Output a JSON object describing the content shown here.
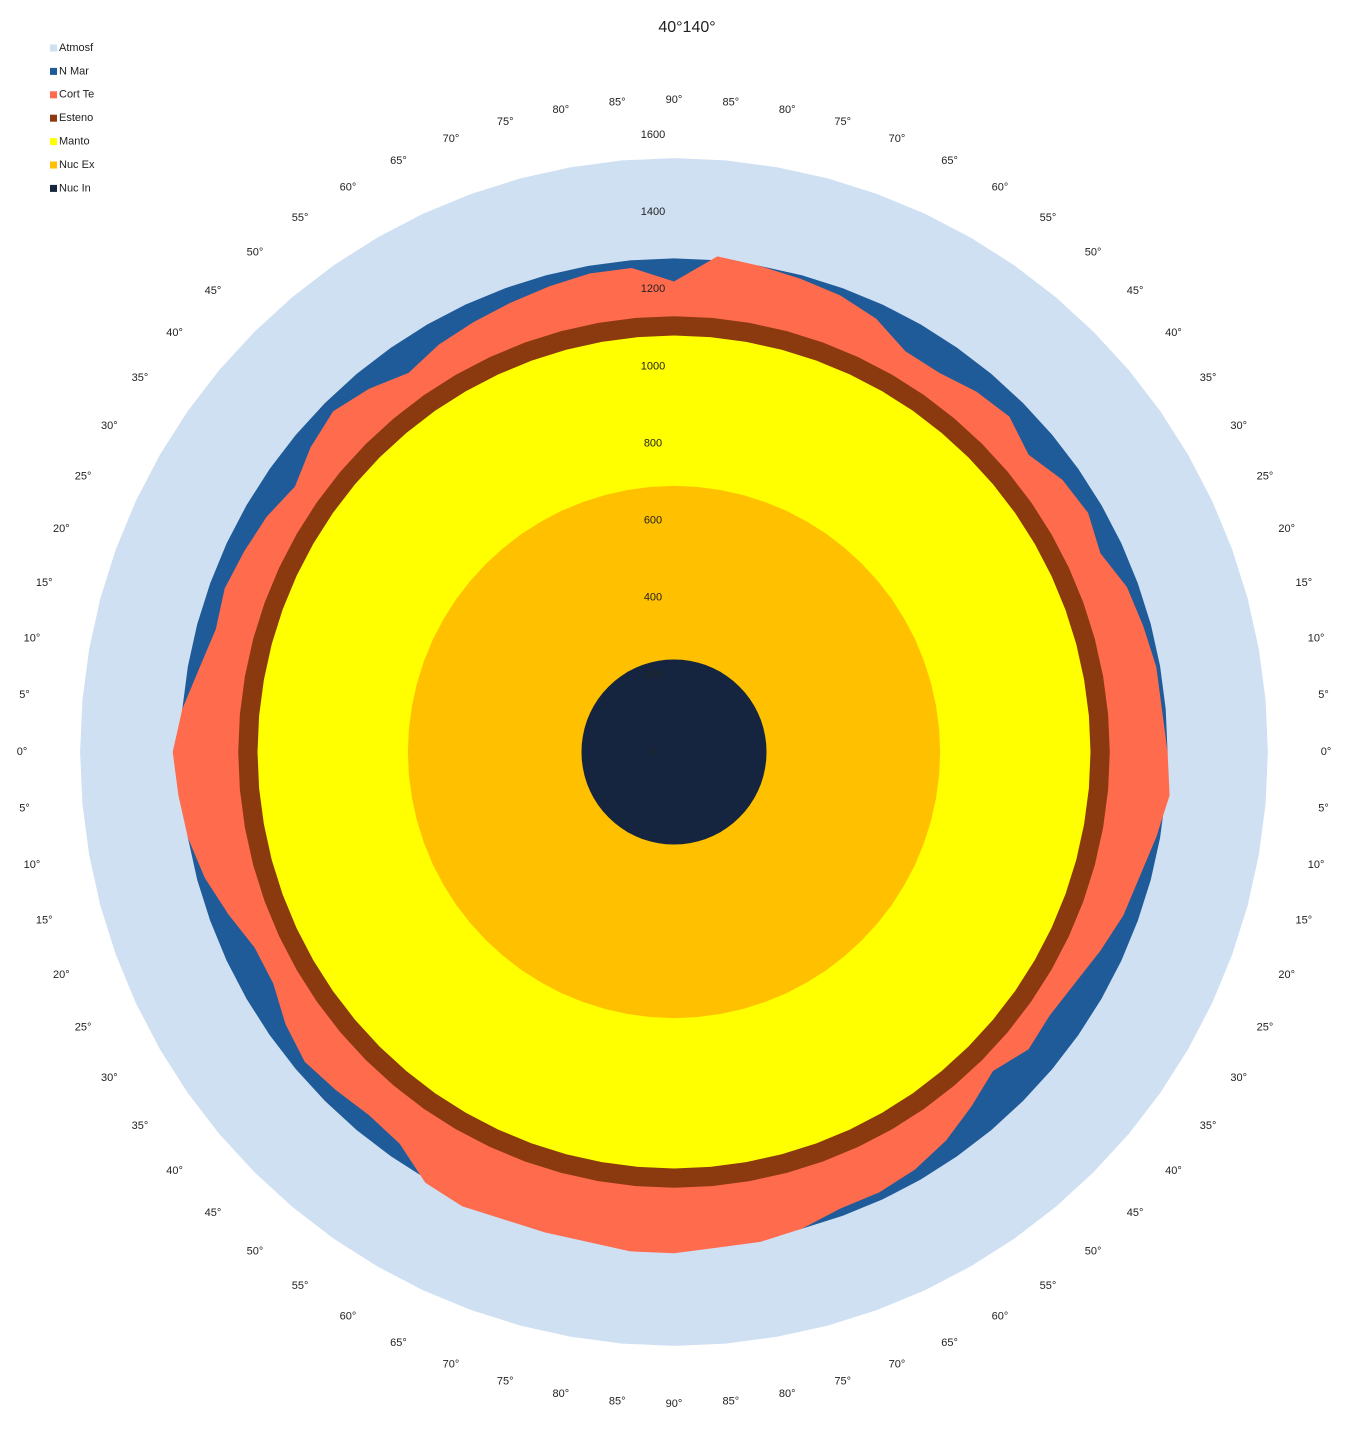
{
  "chart_data": {
    "type": "radar",
    "title": "40°140°",
    "categories": [
      "90°",
      "85°",
      "80°",
      "75°",
      "70°",
      "65°",
      "60°",
      "55°",
      "50°",
      "45°",
      "40°",
      "35°",
      "30°",
      "25°",
      "20°",
      "15°",
      "10°",
      "5°",
      "0°",
      "5°",
      "10°",
      "15°",
      "20°",
      "25°",
      "30°",
      "35°",
      "40°",
      "45°",
      "50°",
      "55°",
      "60°",
      "65°",
      "70°",
      "75°",
      "80°",
      "85°",
      "90°",
      "85°",
      "80°",
      "75°",
      "70°",
      "65°",
      "60°",
      "55°",
      "50°",
      "45°",
      "40°",
      "35°",
      "30°",
      "25°",
      "20°",
      "15°",
      "10°",
      "5°",
      "0°",
      "5°",
      "10°",
      "15°",
      "20°",
      "25°",
      "30°",
      "35°",
      "40°",
      "45°",
      "50°",
      "55°",
      "60°",
      "65°",
      "70°",
      "75°",
      "80°",
      "85°"
    ],
    "ylim": [
      0,
      1600
    ],
    "yticks": [
      0,
      200,
      400,
      600,
      800,
      1000,
      1200,
      1400,
      1600
    ],
    "series": [
      {
        "name": "Atmosf",
        "color": "#cfe0f3",
        "values": [
          1540,
          1540,
          1540,
          1540,
          1540,
          1540,
          1540,
          1540,
          1540,
          1540,
          1540,
          1540,
          1540,
          1540,
          1540,
          1540,
          1540,
          1540,
          1540,
          1540,
          1540,
          1540,
          1540,
          1540,
          1540,
          1540,
          1540,
          1540,
          1540,
          1540,
          1540,
          1540,
          1540,
          1540,
          1540,
          1540,
          1540,
          1540,
          1540,
          1540,
          1540,
          1540,
          1540,
          1540,
          1540,
          1540,
          1540,
          1540,
          1540,
          1540,
          1540,
          1540,
          1540,
          1540,
          1540,
          1540,
          1540,
          1540,
          1540,
          1540,
          1540,
          1540,
          1540,
          1540,
          1540,
          1540,
          1540,
          1540,
          1540,
          1540,
          1540,
          1540
        ]
      },
      {
        "name": "N Mar",
        "color": "#1f5b99",
        "values": [
          1280,
          1280,
          1280,
          1280,
          1280,
          1280,
          1280,
          1280,
          1280,
          1280,
          1280,
          1280,
          1280,
          1280,
          1280,
          1280,
          1280,
          1280,
          1280,
          1280,
          1280,
          1280,
          1280,
          1280,
          1280,
          1280,
          1280,
          1280,
          1280,
          1280,
          1280,
          1280,
          1280,
          1280,
          1280,
          1280,
          1280,
          1280,
          1280,
          1280,
          1280,
          1280,
          1280,
          1280,
          1280,
          1280,
          1280,
          1280,
          1280,
          1280,
          1280,
          1280,
          1280,
          1280,
          1280,
          1280,
          1280,
          1280,
          1280,
          1280,
          1280,
          1280,
          1280,
          1280,
          1280,
          1280,
          1280,
          1280,
          1280,
          1280,
          1280,
          1280
        ]
      },
      {
        "name": "Cort Te",
        "color": "#ff6b4d",
        "values": [
          1220,
          1290,
          1280,
          1270,
          1260,
          1240,
          1200,
          1200,
          1220,
          1230,
          1200,
          1230,
          1240,
          1220,
          1250,
          1260,
          1270,
          1270,
          1280,
          1290,
          1270,
          1250,
          1240,
          1220,
          1200,
          1190,
          1200,
          1170,
          1200,
          1230,
          1250,
          1260,
          1260,
          1280,
          1290,
          1290,
          1300,
          1300,
          1290,
          1290,
          1290,
          1300,
          1290,
          1240,
          1230,
          1240,
          1250,
          1230,
          1200,
          1200,
          1230,
          1260,
          1280,
          1290,
          1300,
          1280,
          1250,
          1230,
          1240,
          1230,
          1220,
          1200,
          1230,
          1250,
          1230,
          1200,
          1220,
          1230,
          1240,
          1250,
          1260,
          1260
        ]
      },
      {
        "name": "Esteno",
        "color": "#8b3a0f",
        "values": [
          1130,
          1130,
          1130,
          1130,
          1130,
          1130,
          1130,
          1130,
          1130,
          1130,
          1130,
          1130,
          1130,
          1130,
          1130,
          1130,
          1130,
          1130,
          1130,
          1130,
          1130,
          1130,
          1130,
          1130,
          1130,
          1130,
          1130,
          1130,
          1130,
          1130,
          1130,
          1130,
          1130,
          1130,
          1130,
          1130,
          1130,
          1130,
          1130,
          1130,
          1130,
          1130,
          1130,
          1130,
          1130,
          1130,
          1130,
          1130,
          1130,
          1130,
          1130,
          1130,
          1130,
          1130,
          1130,
          1130,
          1130,
          1130,
          1130,
          1130,
          1130,
          1130,
          1130,
          1130,
          1130,
          1130,
          1130,
          1130,
          1130,
          1130,
          1130,
          1130
        ]
      },
      {
        "name": "Manto",
        "color": "#ffff00",
        "values": [
          1080,
          1080,
          1080,
          1080,
          1080,
          1080,
          1080,
          1080,
          1080,
          1080,
          1080,
          1080,
          1080,
          1080,
          1080,
          1080,
          1080,
          1080,
          1080,
          1080,
          1080,
          1080,
          1080,
          1080,
          1080,
          1080,
          1080,
          1080,
          1080,
          1080,
          1080,
          1080,
          1080,
          1080,
          1080,
          1080,
          1080,
          1080,
          1080,
          1080,
          1080,
          1080,
          1080,
          1080,
          1080,
          1080,
          1080,
          1080,
          1080,
          1080,
          1080,
          1080,
          1080,
          1080,
          1080,
          1080,
          1080,
          1080,
          1080,
          1080,
          1080,
          1080,
          1080,
          1080,
          1080,
          1080,
          1080,
          1080,
          1080,
          1080,
          1080,
          1080
        ]
      },
      {
        "name": "Nuc Ex",
        "color": "#ffc000",
        "values": [
          690,
          690,
          690,
          690,
          690,
          690,
          690,
          690,
          690,
          690,
          690,
          690,
          690,
          690,
          690,
          690,
          690,
          690,
          690,
          690,
          690,
          690,
          690,
          690,
          690,
          690,
          690,
          690,
          690,
          690,
          690,
          690,
          690,
          690,
          690,
          690,
          690,
          690,
          690,
          690,
          690,
          690,
          690,
          690,
          690,
          690,
          690,
          690,
          690,
          690,
          690,
          690,
          690,
          690,
          690,
          690,
          690,
          690,
          690,
          690,
          690,
          690,
          690,
          690,
          690,
          690,
          690,
          690,
          690,
          690,
          690,
          690
        ]
      },
      {
        "name": "Nuc In",
        "color": "#15253f",
        "values": [
          240,
          240,
          240,
          240,
          240,
          240,
          240,
          240,
          240,
          240,
          240,
          240,
          240,
          240,
          240,
          240,
          240,
          240,
          240,
          240,
          240,
          240,
          240,
          240,
          240,
          240,
          240,
          240,
          240,
          240,
          240,
          240,
          240,
          240,
          240,
          240,
          240,
          240,
          240,
          240,
          240,
          240,
          240,
          240,
          240,
          240,
          240,
          240,
          240,
          240,
          240,
          240,
          240,
          240,
          240,
          240,
          240,
          240,
          240,
          240,
          240,
          240,
          240,
          240,
          240,
          240,
          240,
          240,
          240,
          240,
          240,
          240
        ]
      }
    ]
  }
}
